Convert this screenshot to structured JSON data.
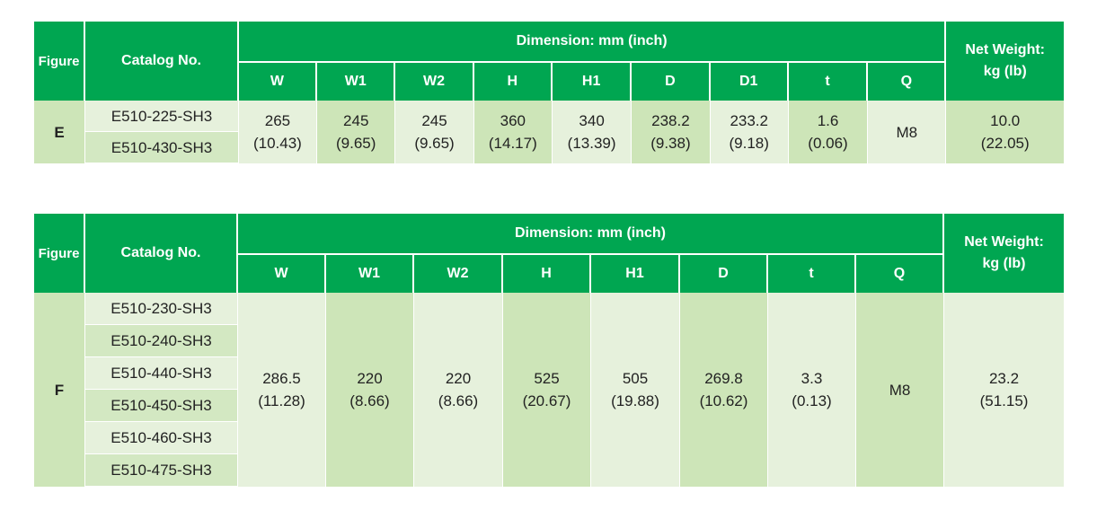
{
  "headers": {
    "figure": "Figure",
    "catalog": "Catalog No.",
    "dimension": "Dimension: mm (inch)",
    "weight_line1": "Net Weight:",
    "weight_line2": "kg (lb)"
  },
  "table1": {
    "cols": [
      "W",
      "W1",
      "W2",
      "H",
      "H1",
      "D",
      "D1",
      "t",
      "Q"
    ],
    "figure": "E",
    "catalog": [
      "E510-225-SH3",
      "E510-430-SH3"
    ],
    "values": [
      {
        "mm": "265",
        "inch": "(10.43)"
      },
      {
        "mm": "245",
        "inch": "(9.65)"
      },
      {
        "mm": "245",
        "inch": "(9.65)"
      },
      {
        "mm": "360",
        "inch": "(14.17)"
      },
      {
        "mm": "340",
        "inch": "(13.39)"
      },
      {
        "mm": "238.2",
        "inch": "(9.38)"
      },
      {
        "mm": "233.2",
        "inch": "(9.18)"
      },
      {
        "mm": "1.6",
        "inch": "(0.06)"
      },
      {
        "mm": "M8",
        "inch": ""
      }
    ],
    "weight": {
      "kg": "10.0",
      "lb": "(22.05)"
    }
  },
  "table2": {
    "cols": [
      "W",
      "W1",
      "W2",
      "H",
      "H1",
      "D",
      "t",
      "Q"
    ],
    "figure": "F",
    "catalog": [
      "E510-230-SH3",
      "E510-240-SH3",
      "E510-440-SH3",
      "E510-450-SH3",
      "E510-460-SH3",
      "E510-475-SH3"
    ],
    "values": [
      {
        "mm": "286.5",
        "inch": "(11.28)"
      },
      {
        "mm": "220",
        "inch": "(8.66)"
      },
      {
        "mm": "220",
        "inch": "(8.66)"
      },
      {
        "mm": "525",
        "inch": "(20.67)"
      },
      {
        "mm": "505",
        "inch": "(19.88)"
      },
      {
        "mm": "269.8",
        "inch": "(10.62)"
      },
      {
        "mm": "3.3",
        "inch": "(0.13)"
      },
      {
        "mm": "M8",
        "inch": ""
      }
    ],
    "weight": {
      "kg": "23.2",
      "lb": "(51.15)"
    }
  }
}
